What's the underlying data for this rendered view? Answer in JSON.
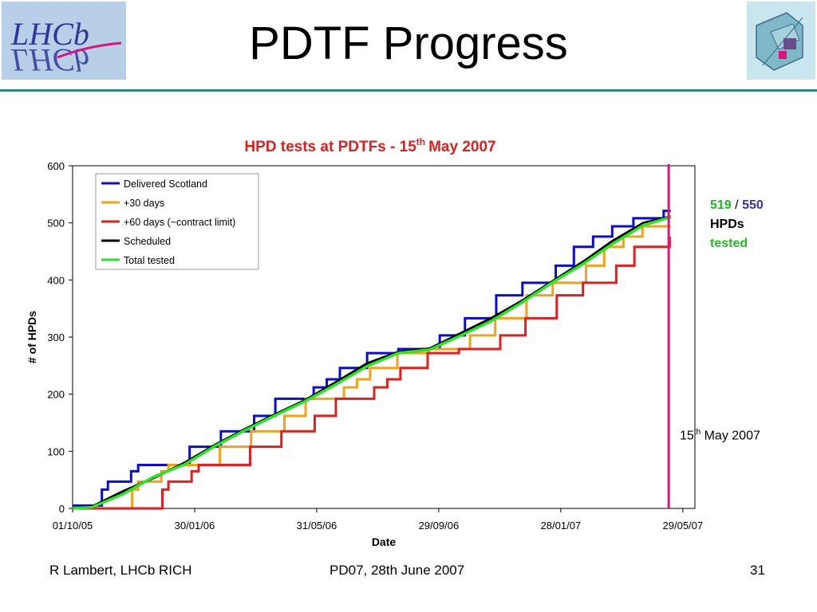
{
  "slide": {
    "title": "PDTF Progress",
    "logo_left": "LHCb",
    "footer_left": "R Lambert, LHCb RICH",
    "footer_center": "PD07, 28th June 2007",
    "footer_right": "31"
  },
  "side_note": {
    "tested_count": "519",
    "separator": "/",
    "total_count": "550",
    "line2": "HPDs",
    "line3": "tested"
  },
  "marker_label": {
    "day": "15",
    "suffix": "th",
    "rest": "May 2007"
  },
  "colors": {
    "delivered": "#0b0bd6",
    "plus30": "#f5a01a",
    "plus60": "#e21f1f",
    "scheduled": "#000000",
    "tested": "#26e626",
    "marker": "#e0117f",
    "title_red": "#e21f1f"
  },
  "chart_data": {
    "type": "line",
    "title": "HPD tests at PDTFs - 15",
    "title_sup": "th",
    "title_tail": "May 2007",
    "xlabel": "Date",
    "ylabel": "# of HPDs",
    "ylim": [
      0,
      600
    ],
    "yticks": [
      "0",
      "100",
      "200",
      "300",
      "400",
      "500",
      "600"
    ],
    "xlim": [
      "2005-10-01",
      "2007-06-10"
    ],
    "xticks": [
      {
        "label": "01/10/05",
        "date": "2005-10-01"
      },
      {
        "label": "30/01/06",
        "date": "2006-01-30"
      },
      {
        "label": "31/05/06",
        "date": "2006-05-31"
      },
      {
        "label": "29/09/06",
        "date": "2006-09-29"
      },
      {
        "label": "28/01/07",
        "date": "2007-01-28"
      },
      {
        "label": "29/05/07",
        "date": "2007-05-29"
      }
    ],
    "marker_date": "2007-05-15",
    "legend_placement": "top-left",
    "series": [
      {
        "name": "Delivered Scotland",
        "color": "#0b0bd6",
        "step": true,
        "points": [
          [
            "2005-10-01",
            5
          ],
          [
            "2005-10-30",
            33
          ],
          [
            "2005-11-05",
            47
          ],
          [
            "2005-11-28",
            65
          ],
          [
            "2005-12-05",
            76
          ],
          [
            "2006-01-25",
            108
          ],
          [
            "2006-02-25",
            135
          ],
          [
            "2006-03-30",
            162
          ],
          [
            "2006-04-20",
            192
          ],
          [
            "2006-05-28",
            212
          ],
          [
            "2006-06-10",
            226
          ],
          [
            "2006-06-23",
            246
          ],
          [
            "2006-07-20",
            272
          ],
          [
            "2006-08-20",
            279
          ],
          [
            "2006-09-30",
            303
          ],
          [
            "2006-10-25",
            333
          ],
          [
            "2006-11-25",
            373
          ],
          [
            "2006-12-21",
            395
          ],
          [
            "2007-01-23",
            425
          ],
          [
            "2007-02-10",
            458
          ],
          [
            "2007-03-01",
            476
          ],
          [
            "2007-03-20",
            494
          ],
          [
            "2007-04-10",
            508
          ],
          [
            "2007-05-10",
            521
          ],
          [
            "2007-05-17",
            521
          ]
        ]
      },
      {
        "name": "+30 days",
        "color": "#f5a01a",
        "step": true,
        "points": [
          [
            "2005-10-01",
            0
          ],
          [
            "2005-11-29",
            33
          ],
          [
            "2005-12-05",
            47
          ],
          [
            "2005-12-28",
            65
          ],
          [
            "2006-01-04",
            76
          ],
          [
            "2006-02-24",
            108
          ],
          [
            "2006-03-27",
            135
          ],
          [
            "2006-04-29",
            162
          ],
          [
            "2006-05-20",
            192
          ],
          [
            "2006-06-27",
            212
          ],
          [
            "2006-07-10",
            226
          ],
          [
            "2006-07-23",
            246
          ],
          [
            "2006-08-19",
            272
          ],
          [
            "2006-09-19",
            279
          ],
          [
            "2006-10-30",
            303
          ],
          [
            "2006-11-24",
            333
          ],
          [
            "2006-12-25",
            373
          ],
          [
            "2007-01-20",
            395
          ],
          [
            "2007-02-22",
            425
          ],
          [
            "2007-03-12",
            458
          ],
          [
            "2007-03-31",
            476
          ],
          [
            "2007-04-19",
            494
          ],
          [
            "2007-05-17",
            494
          ]
        ]
      },
      {
        "name": "+60 days (~contract limit)",
        "color": "#e21f1f",
        "step": true,
        "points": [
          [
            "2005-10-01",
            0
          ],
          [
            "2005-12-29",
            33
          ],
          [
            "2006-01-04",
            47
          ],
          [
            "2006-01-27",
            65
          ],
          [
            "2006-02-03",
            76
          ],
          [
            "2006-03-26",
            108
          ],
          [
            "2006-04-26",
            135
          ],
          [
            "2006-05-29",
            162
          ],
          [
            "2006-06-19",
            192
          ],
          [
            "2006-07-27",
            212
          ],
          [
            "2006-08-09",
            226
          ],
          [
            "2006-08-22",
            246
          ],
          [
            "2006-09-18",
            272
          ],
          [
            "2006-10-19",
            279
          ],
          [
            "2006-11-29",
            303
          ],
          [
            "2006-12-24",
            333
          ],
          [
            "2007-01-24",
            373
          ],
          [
            "2007-02-19",
            395
          ],
          [
            "2007-03-24",
            425
          ],
          [
            "2007-04-11",
            458
          ],
          [
            "2007-05-16",
            476
          ]
        ]
      },
      {
        "name": "Scheduled",
        "color": "#000000",
        "step": false,
        "points": [
          [
            "2005-10-01",
            0
          ],
          [
            "2005-10-20",
            3
          ],
          [
            "2005-11-20",
            30
          ],
          [
            "2005-12-20",
            53
          ],
          [
            "2006-01-20",
            80
          ],
          [
            "2006-02-20",
            112
          ],
          [
            "2006-03-20",
            138
          ],
          [
            "2006-04-20",
            165
          ],
          [
            "2006-05-20",
            190
          ],
          [
            "2006-06-20",
            222
          ],
          [
            "2006-07-20",
            254
          ],
          [
            "2006-08-20",
            274
          ],
          [
            "2006-09-20",
            280
          ],
          [
            "2006-10-20",
            306
          ],
          [
            "2006-11-20",
            333
          ],
          [
            "2006-12-20",
            363
          ],
          [
            "2007-01-20",
            398
          ],
          [
            "2007-02-20",
            433
          ],
          [
            "2007-03-20",
            468
          ],
          [
            "2007-04-20",
            500
          ],
          [
            "2007-05-17",
            511
          ]
        ]
      },
      {
        "name": "Total tested",
        "color": "#26e626",
        "step": false,
        "points": [
          [
            "2005-10-01",
            0
          ],
          [
            "2005-10-20",
            2
          ],
          [
            "2005-11-20",
            25
          ],
          [
            "2005-12-20",
            55
          ],
          [
            "2006-01-20",
            77
          ],
          [
            "2006-02-20",
            110
          ],
          [
            "2006-03-20",
            136
          ],
          [
            "2006-04-20",
            163
          ],
          [
            "2006-05-20",
            188
          ],
          [
            "2006-06-20",
            218
          ],
          [
            "2006-07-20",
            249
          ],
          [
            "2006-08-20",
            272
          ],
          [
            "2006-09-20",
            278
          ],
          [
            "2006-10-20",
            302
          ],
          [
            "2006-11-20",
            328
          ],
          [
            "2006-12-20",
            360
          ],
          [
            "2007-01-20",
            396
          ],
          [
            "2007-02-20",
            429
          ],
          [
            "2007-03-20",
            463
          ],
          [
            "2007-04-20",
            496
          ],
          [
            "2007-05-17",
            510
          ]
        ]
      }
    ]
  }
}
